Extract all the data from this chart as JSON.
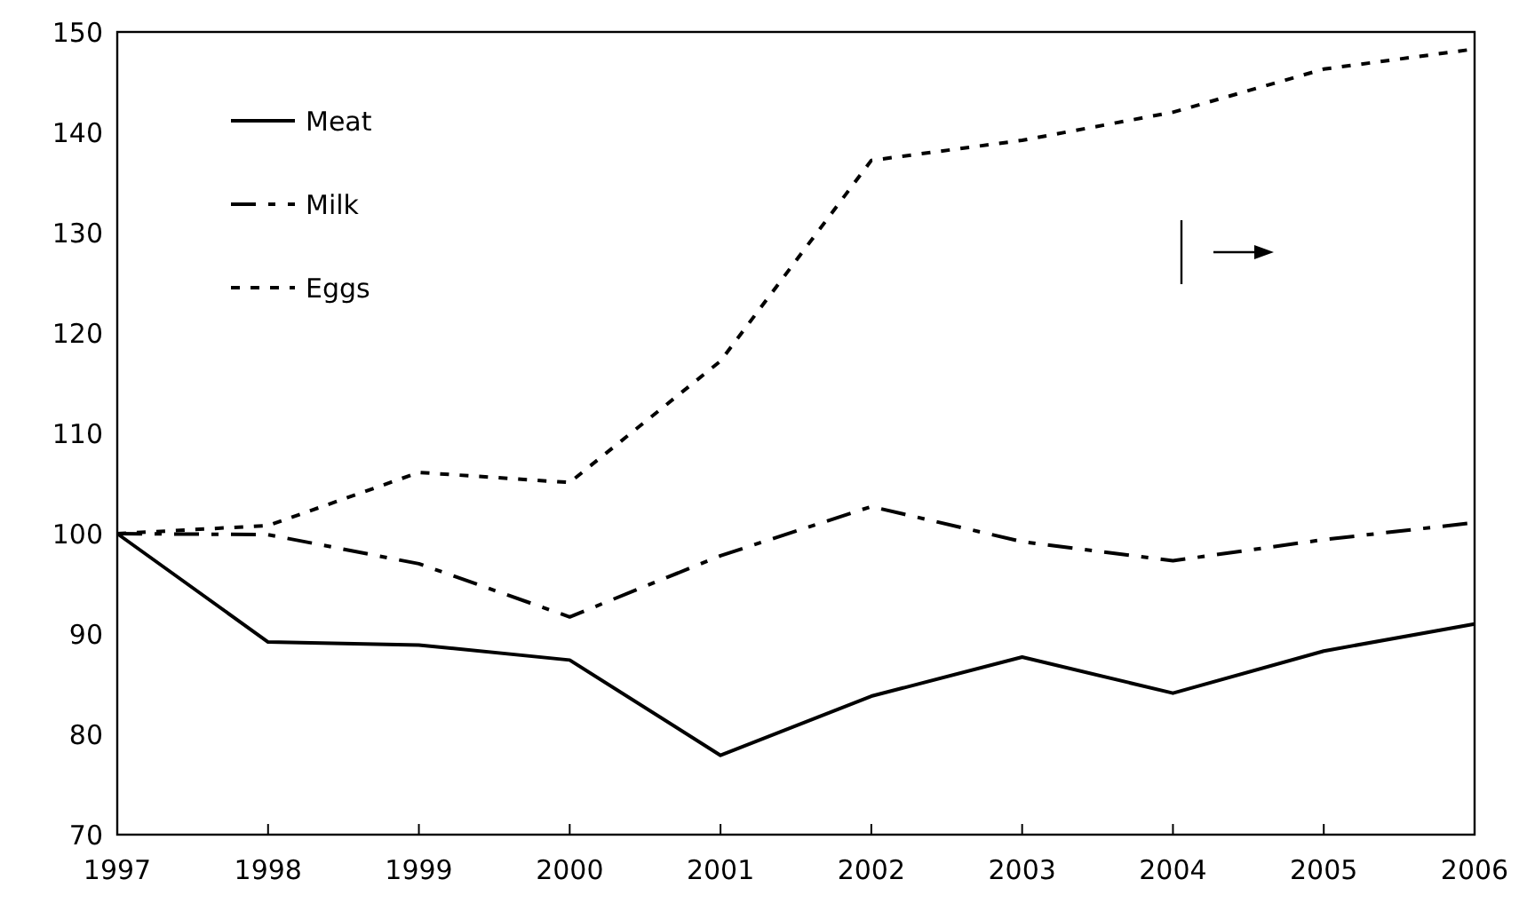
{
  "chart_data": {
    "type": "line",
    "x": [
      1997,
      1998,
      1999,
      2000,
      2001,
      2002,
      2003,
      2004,
      2005,
      2006
    ],
    "xlim": [
      1997,
      2006
    ],
    "xticks": [
      1997,
      1998,
      1999,
      2000,
      2001,
      2002,
      2003,
      2004,
      2005,
      2006
    ],
    "ylim": [
      70,
      150
    ],
    "yticks": [
      70,
      80,
      90,
      100,
      110,
      120,
      130,
      140,
      150
    ],
    "grid": false,
    "legend": "top left",
    "marker": "none",
    "series": [
      {
        "name": "Meat",
        "color": "#000000",
        "line_style": "solid",
        "values": [
          100,
          89.2,
          88.9,
          87.4,
          77.9,
          83.8,
          87.7,
          84.1,
          88.3,
          91.0
        ]
      },
      {
        "name": "Milk",
        "color": "#000000",
        "line_style": "dashed",
        "values": [
          100,
          99.9,
          97.0,
          91.7,
          97.8,
          102.7,
          99.2,
          97.3,
          99.4,
          101.1
        ]
      },
      {
        "name": "Eggs",
        "color": "#000000",
        "line_style": "dotted",
        "values": [
          100,
          100.8,
          106.1,
          105.1,
          117.2,
          137.2,
          139.2,
          142.0,
          146.3,
          148.3
        ]
      }
    ]
  }
}
